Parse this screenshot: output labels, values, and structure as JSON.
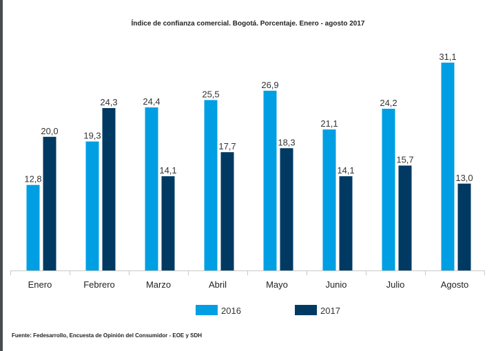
{
  "chart_data": {
    "type": "bar",
    "title": "Índice de confianza comercial. Bogotá. Porcentaje.  Enero - agosto 2017",
    "xlabel": "",
    "ylabel": "",
    "categories": [
      "Enero",
      "Febrero",
      "Marzo",
      "Abril",
      "Mayo",
      "Junio",
      "Julio",
      "Agosto"
    ],
    "series": [
      {
        "name": "2016",
        "color": "#009fe3",
        "values": [
          12.8,
          19.3,
          24.4,
          25.5,
          26.9,
          21.1,
          24.2,
          31.1
        ],
        "labels": [
          "12,8",
          "19,3",
          "24,4",
          "25,5",
          "26,9",
          "21,1",
          "24,2",
          "31,1"
        ]
      },
      {
        "name": "2017",
        "color": "#003a63",
        "values": [
          20.0,
          24.3,
          14.1,
          17.7,
          18.3,
          14.1,
          15.7,
          13.0
        ],
        "labels": [
          "20,0",
          "24,3",
          "14,1",
          "17,7",
          "18,3",
          "14,1",
          "15,7",
          "13,0"
        ]
      }
    ],
    "ylim": [
      0,
      31.1
    ],
    "grid": false,
    "legend": "bottom-center",
    "source": "Fuente: Fedesarrollo, Encuesta de Opinión del Consumidor - EOE y SDH"
  }
}
